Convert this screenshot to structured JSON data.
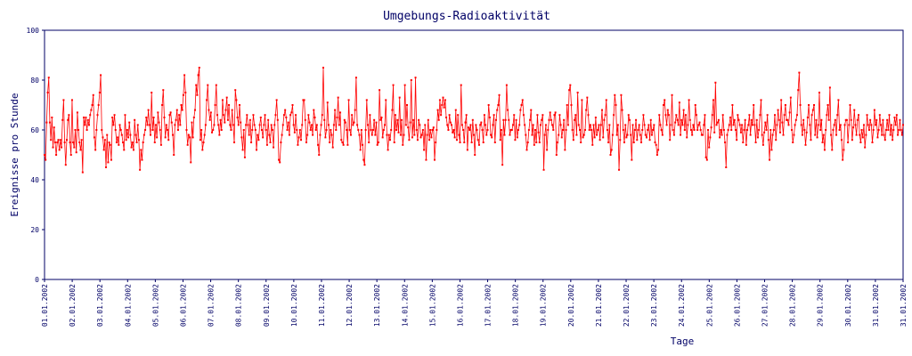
{
  "chart_data": {
    "type": "line",
    "title": "Umgebungs-Radioaktivität",
    "xlabel": "Tage",
    "ylabel": "Ereignisse pro Stunde",
    "ylim": [
      0,
      100
    ],
    "yticks": [
      0,
      20,
      40,
      60,
      80,
      100
    ],
    "xticks": [
      "01.01.2002",
      "02.01.2002",
      "03.01.2002",
      "04.01.2002",
      "05.01.2002",
      "06.01.2002",
      "07.01.2002",
      "08.01.2002",
      "09.01.2002",
      "10.01.2002",
      "11.01.2002",
      "12.01.2002",
      "13.01.2002",
      "14.01.2002",
      "15.01.2002",
      "16.01.2002",
      "17.01.2002",
      "18.01.2002",
      "19.01.2002",
      "20.01.2002",
      "21.01.2002",
      "22.01.2002",
      "23.01.2002",
      "24.01.2002",
      "25.01.2002",
      "26.01.2002",
      "27.01.2002",
      "28.01.2002",
      "29.01.2002",
      "30.01.2002",
      "31.01.2002",
      "31.01.2002"
    ],
    "x_unit": "hours since 01.01.2002 00:00",
    "x_range": [
      0,
      744
    ],
    "series": [
      {
        "color": "#ff0000",
        "values": [
          50,
          48,
          63,
          75,
          81,
          63,
          56,
          65,
          53,
          61,
          55,
          50,
          55,
          56,
          52,
          56,
          53,
          64,
          72,
          55,
          46,
          56,
          64,
          66,
          55,
          50,
          72,
          55,
          53,
          60,
          51,
          67,
          60,
          55,
          52,
          56,
          43,
          65,
          62,
          65,
          60,
          64,
          62,
          66,
          68,
          70,
          74,
          57,
          52,
          60,
          66,
          70,
          75,
          82,
          60,
          57,
          52,
          56,
          45,
          58,
          47,
          55,
          54,
          48,
          65,
          62,
          66,
          60,
          55,
          57,
          54,
          62,
          60,
          58,
          55,
          52,
          66,
          56,
          60,
          57,
          63,
          58,
          53,
          55,
          52,
          64,
          58,
          55,
          62,
          56,
          44,
          52,
          48,
          55,
          58,
          60,
          65,
          62,
          68,
          62,
          58,
          75,
          60,
          65,
          55,
          62,
          57,
          67,
          63,
          60,
          54,
          70,
          76,
          65,
          57,
          62,
          60,
          56,
          66,
          67,
          63,
          58,
          50,
          62,
          64,
          68,
          60,
          66,
          62,
          70,
          68,
          74,
          82,
          75,
          60,
          54,
          58,
          57,
          47,
          63,
          57,
          65,
          68,
          78,
          74,
          82,
          85,
          56,
          60,
          52,
          55,
          58,
          62,
          72,
          78,
          68,
          64,
          67,
          59,
          60,
          62,
          70,
          78,
          66,
          62,
          58,
          64,
          60,
          72,
          66,
          63,
          68,
          73,
          64,
          70,
          62,
          60,
          68,
          62,
          55,
          76,
          72,
          65,
          62,
          70,
          63,
          57,
          52,
          60,
          49,
          62,
          66,
          62,
          58,
          64,
          55,
          60,
          66,
          62,
          60,
          52,
          58,
          56,
          62,
          65,
          60,
          57,
          62,
          66,
          60,
          54,
          64,
          58,
          55,
          62,
          60,
          53,
          62,
          66,
          72,
          64,
          48,
          47,
          55,
          58,
          62,
          66,
          68,
          65,
          60,
          63,
          58,
          66,
          67,
          70,
          62,
          59,
          66,
          60,
          54,
          57,
          60,
          56,
          62,
          72,
          72,
          64,
          55,
          58,
          66,
          63,
          60,
          62,
          58,
          68,
          65,
          60,
          62,
          54,
          50,
          58,
          62,
          66,
          85,
          64,
          57,
          60,
          71,
          62,
          55,
          60,
          58,
          53,
          62,
          68,
          60,
          65,
          73,
          62,
          67,
          56,
          55,
          54,
          64,
          63,
          60,
          54,
          72,
          60,
          58,
          66,
          62,
          63,
          68,
          81,
          62,
          60,
          58,
          52,
          60,
          54,
          48,
          46,
          60,
          72,
          62,
          55,
          66,
          60,
          58,
          60,
          64,
          58,
          63,
          54,
          55,
          76,
          64,
          65,
          57,
          60,
          62,
          72,
          58,
          52,
          58,
          56,
          60,
          68,
          78,
          55,
          66,
          60,
          64,
          59,
          73,
          58,
          64,
          54,
          58,
          78,
          62,
          70,
          61,
          56,
          63,
          80,
          57,
          64,
          58,
          81,
          60,
          56,
          64,
          62,
          57,
          58,
          60,
          52,
          62,
          48,
          58,
          64,
          56,
          60,
          57,
          60,
          61,
          48,
          55,
          60,
          68,
          64,
          72,
          66,
          70,
          73,
          69,
          72,
          65,
          62,
          60,
          66,
          63,
          62,
          59,
          60,
          57,
          68,
          56,
          66,
          58,
          55,
          78,
          62,
          60,
          55,
          63,
          66,
          52,
          61,
          60,
          62,
          55,
          64,
          58,
          50,
          62,
          60,
          56,
          54,
          62,
          63,
          60,
          55,
          66,
          62,
          58,
          60,
          70,
          65,
          58,
          57,
          62,
          66,
          55,
          64,
          68,
          70,
          74,
          56,
          60,
          46,
          64,
          58,
          64,
          78,
          68,
          64,
          58,
          60,
          60,
          62,
          66,
          56,
          64,
          57,
          60,
          62,
          68,
          70,
          72,
          66,
          62,
          58,
          52,
          55,
          60,
          64,
          68,
          58,
          62,
          54,
          60,
          55,
          66,
          59,
          55,
          62,
          64,
          66,
          44,
          58,
          62,
          52,
          60,
          64,
          67,
          64,
          62,
          60,
          66,
          67,
          50,
          55,
          58,
          66,
          62,
          57,
          60,
          64,
          52,
          60,
          70,
          62,
          76,
          78,
          70,
          60,
          56,
          64,
          66,
          58,
          75,
          62,
          60,
          55,
          72,
          57,
          58,
          60,
          68,
          73,
          66,
          60,
          62,
          60,
          54,
          62,
          57,
          65,
          58,
          60,
          62,
          56,
          62,
          68,
          57,
          64,
          66,
          72,
          60,
          55,
          62,
          50,
          52,
          58,
          66,
          74,
          70,
          58,
          62,
          44,
          56,
          74,
          68,
          60,
          55,
          62,
          57,
          58,
          66,
          64,
          58,
          48,
          62,
          55,
          60,
          64,
          56,
          60,
          62,
          58,
          55,
          60,
          66,
          62,
          58,
          57,
          60,
          62,
          56,
          64,
          58,
          60,
          62,
          55,
          54,
          50,
          52,
          66,
          62,
          60,
          58,
          70,
          72,
          66,
          62,
          68,
          66,
          56,
          62,
          74,
          60,
          58,
          63,
          66,
          64,
          62,
          71,
          58,
          64,
          62,
          68,
          60,
          66,
          57,
          62,
          72,
          64,
          60,
          58,
          62,
          60,
          70,
          66,
          60,
          62,
          63,
          60,
          58,
          58,
          62,
          66,
          49,
          48,
          60,
          53,
          57,
          61,
          66,
          72,
          59,
          79,
          62,
          63,
          64,
          57,
          60,
          58,
          66,
          60,
          55,
          45,
          58,
          60,
          62,
          65,
          60,
          70,
          62,
          64,
          60,
          56,
          66,
          64,
          62,
          59,
          62,
          55,
          60,
          64,
          54,
          60,
          62,
          66,
          58,
          64,
          62,
          70,
          62,
          55,
          64,
          57,
          60,
          66,
          72,
          58,
          54,
          59,
          63,
          60,
          66,
          56,
          48,
          60,
          52,
          58,
          60,
          66,
          56,
          62,
          68,
          64,
          59,
          72,
          63,
          58,
          66,
          70,
          64,
          64,
          62,
          67,
          73,
          60,
          55,
          58,
          62,
          64,
          66,
          76,
          83,
          70,
          62,
          58,
          64,
          60,
          54,
          59,
          65,
          70,
          62,
          56,
          66,
          68,
          70,
          58,
          64,
          57,
          62,
          75,
          60,
          64,
          55,
          58,
          52,
          60,
          66,
          70,
          64,
          77,
          58,
          52,
          60,
          62,
          64,
          58,
          66,
          72,
          60,
          62,
          56,
          48,
          52,
          62,
          64,
          64,
          55,
          62,
          70,
          64,
          56,
          61,
          68,
          62,
          58,
          64,
          66,
          58,
          55,
          60,
          57,
          62,
          53,
          58,
          66,
          62,
          60,
          64,
          62,
          55,
          60,
          68,
          62,
          64,
          57,
          60,
          66,
          62,
          58,
          64,
          58,
          56,
          60,
          64,
          60,
          66,
          58,
          62,
          56,
          60,
          65,
          62,
          66,
          58,
          60,
          64,
          60,
          58,
          62
        ]
      }
    ]
  }
}
